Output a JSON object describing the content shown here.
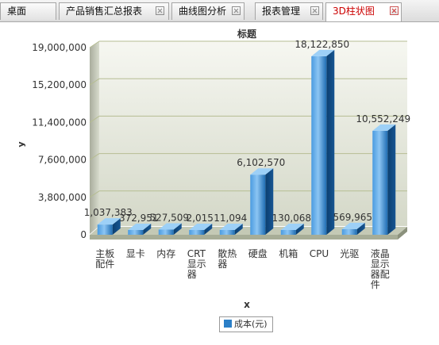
{
  "tabs": [
    {
      "label": "桌面",
      "closable": false,
      "active": false
    },
    {
      "label": "产品销售汇总报表",
      "closable": true,
      "active": false
    },
    {
      "label": "曲线图分析",
      "closable": true,
      "active": false
    },
    {
      "label": "报表管理",
      "closable": true,
      "active": false
    },
    {
      "label": "3D柱状图",
      "closable": true,
      "active": true
    }
  ],
  "legend_icon": "legend-swatch-icon",
  "chart_data": {
    "type": "bar",
    "title": "标题",
    "xlabel": "x",
    "ylabel": "y",
    "ylim": [
      0,
      19000000
    ],
    "yticks": [
      "19,000,000",
      "15,200,000",
      "11,400,000",
      "7,600,000",
      "3,800,000",
      "0"
    ],
    "ytick_values": [
      19000000,
      15200000,
      11400000,
      7600000,
      3800000,
      0
    ],
    "categories": [
      "主板配件",
      "显卡",
      "内存",
      "CRT显示器",
      "散热器",
      "硬盘",
      "机箱",
      "CPU",
      "光驱",
      "液晶显示器配件"
    ],
    "category_lines": [
      [
        "主板",
        "配件"
      ],
      [
        "显卡"
      ],
      [
        "内存"
      ],
      [
        "CRT",
        "显示",
        "器"
      ],
      [
        "散热",
        "器"
      ],
      [
        "硬盘"
      ],
      [
        "机箱"
      ],
      [
        "CPU"
      ],
      [
        "光驱"
      ],
      [
        "液晶",
        "显示",
        "器配",
        "件"
      ]
    ],
    "series": [
      {
        "name": "成本(元)",
        "values": [
          1037383,
          372951,
          527509,
          2015,
          11094,
          6102570,
          130068,
          18122850,
          569965,
          10552249
        ],
        "labels": [
          "1,037,383",
          "372,951",
          "527,509",
          "2,015",
          "11,094",
          "6,102,570",
          "130,068",
          "18,122,850",
          "569,965",
          "10,552,249"
        ],
        "color": "#2b7fc7"
      }
    ],
    "grid": true,
    "legend_position": "bottom-center"
  }
}
